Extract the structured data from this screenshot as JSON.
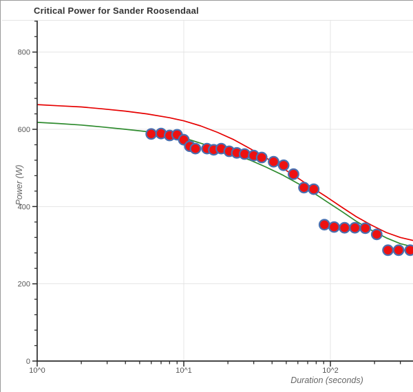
{
  "chart_data": {
    "type": "scatter",
    "title": "Critical Power for Sander Roosendaal",
    "xlabel": "Duration (seconds)",
    "ylabel": "Power (W)",
    "x_scale": "log",
    "xlim": [
      1,
      370
    ],
    "ylim": [
      0,
      880
    ],
    "grid": true,
    "legend": "none",
    "x_ticks": {
      "values": [
        1,
        10,
        100
      ],
      "labels": [
        "10^0",
        "10^1",
        "10^2"
      ]
    },
    "x_minor_ticks": [
      2,
      3,
      4,
      5,
      6,
      7,
      8,
      9,
      20,
      30,
      40,
      50,
      60,
      70,
      80,
      90,
      200,
      300
    ],
    "y_ticks": {
      "values": [
        0,
        200,
        400,
        600,
        800
      ],
      "labels": [
        "0",
        "200",
        "400",
        "600",
        "800"
      ]
    },
    "y_minor_step": 40,
    "series": [
      {
        "name": "cp-model-curve-red",
        "type": "line",
        "color": "#e60000",
        "points": [
          [
            1,
            664
          ],
          [
            1.4,
            661
          ],
          [
            2,
            658
          ],
          [
            2.8,
            653
          ],
          [
            4,
            647
          ],
          [
            5.6,
            640
          ],
          [
            8,
            630
          ],
          [
            10,
            622
          ],
          [
            13,
            609
          ],
          [
            17,
            592
          ],
          [
            22,
            573
          ],
          [
            28,
            551
          ],
          [
            36,
            527
          ],
          [
            47,
            500
          ],
          [
            60,
            474
          ],
          [
            75,
            449
          ],
          [
            95,
            424
          ],
          [
            120,
            398
          ],
          [
            150,
            374
          ],
          [
            190,
            352
          ],
          [
            240,
            333
          ],
          [
            300,
            320
          ],
          [
            370,
            312
          ]
        ]
      },
      {
        "name": "cp-model-curve-green",
        "type": "line",
        "color": "#2e8b2e",
        "points": [
          [
            1,
            618
          ],
          [
            1.4,
            615
          ],
          [
            2,
            611
          ],
          [
            2.8,
            606
          ],
          [
            4,
            600
          ],
          [
            5.6,
            594
          ],
          [
            8,
            586
          ],
          [
            10,
            578
          ],
          [
            13,
            564
          ],
          [
            17,
            550
          ],
          [
            22,
            536
          ],
          [
            28,
            521
          ],
          [
            36,
            503
          ],
          [
            47,
            482
          ],
          [
            60,
            460
          ],
          [
            75,
            438
          ],
          [
            95,
            412
          ],
          [
            120,
            387
          ],
          [
            150,
            362
          ],
          [
            190,
            339
          ],
          [
            240,
            319
          ],
          [
            300,
            304
          ],
          [
            370,
            295
          ]
        ]
      },
      {
        "name": "best-effort-points",
        "type": "scatter",
        "color": "#ee1111",
        "edge_color": "#4a70b0",
        "points": [
          [
            6,
            588
          ],
          [
            7,
            589
          ],
          [
            8,
            584
          ],
          [
            9,
            586
          ],
          [
            10,
            573
          ],
          [
            11,
            556
          ],
          [
            12,
            550
          ],
          [
            14.4,
            550
          ],
          [
            16,
            547
          ],
          [
            18,
            550
          ],
          [
            20.4,
            543
          ],
          [
            23,
            539
          ],
          [
            26,
            536
          ],
          [
            30,
            532
          ],
          [
            34,
            527
          ],
          [
            41,
            516
          ],
          [
            48,
            507
          ],
          [
            56,
            484
          ],
          [
            66,
            449
          ],
          [
            77,
            445
          ],
          [
            91,
            353
          ],
          [
            106,
            347
          ],
          [
            125,
            345
          ],
          [
            147,
            345
          ],
          [
            173,
            344
          ],
          [
            207,
            328
          ],
          [
            247,
            287
          ],
          [
            292,
            287
          ],
          [
            350,
            287
          ]
        ]
      }
    ],
    "colors": {
      "axis": "#2b2b2b",
      "grid": "#e4e4e4",
      "tick_label": "#555555",
      "axis_label": "#666666",
      "title": "#333333",
      "window_border": "#999999",
      "background": "#ffffff"
    }
  }
}
